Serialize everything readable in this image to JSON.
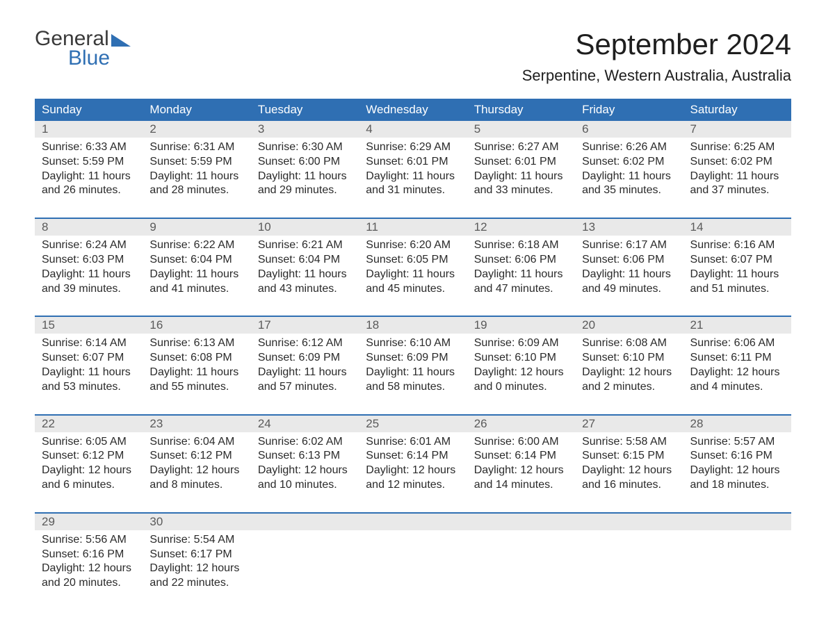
{
  "brand": {
    "line1": "General",
    "line2": "Blue"
  },
  "title": "September 2024",
  "location": "Serpentine, Western Australia, Australia",
  "colors": {
    "header_bg": "#2f6fb3",
    "header_fg": "#ffffff",
    "band_bg": "#e9e9e9",
    "text": "#2a2a2a",
    "page_bg": "#ffffff"
  },
  "fonts": {
    "title_size_pt": 32,
    "location_size_pt": 17,
    "dow_size_pt": 13,
    "body_size_pt": 12
  },
  "layout": {
    "columns": 7,
    "weeks": 5,
    "start_dow_index": 0
  },
  "dow": [
    "Sunday",
    "Monday",
    "Tuesday",
    "Wednesday",
    "Thursday",
    "Friday",
    "Saturday"
  ],
  "days": [
    {
      "n": 1,
      "sunrise": "Sunrise: 6:33 AM",
      "sunset": "Sunset: 5:59 PM",
      "daylight": "Daylight: 11 hours and 26 minutes."
    },
    {
      "n": 2,
      "sunrise": "Sunrise: 6:31 AM",
      "sunset": "Sunset: 5:59 PM",
      "daylight": "Daylight: 11 hours and 28 minutes."
    },
    {
      "n": 3,
      "sunrise": "Sunrise: 6:30 AM",
      "sunset": "Sunset: 6:00 PM",
      "daylight": "Daylight: 11 hours and 29 minutes."
    },
    {
      "n": 4,
      "sunrise": "Sunrise: 6:29 AM",
      "sunset": "Sunset: 6:01 PM",
      "daylight": "Daylight: 11 hours and 31 minutes."
    },
    {
      "n": 5,
      "sunrise": "Sunrise: 6:27 AM",
      "sunset": "Sunset: 6:01 PM",
      "daylight": "Daylight: 11 hours and 33 minutes."
    },
    {
      "n": 6,
      "sunrise": "Sunrise: 6:26 AM",
      "sunset": "Sunset: 6:02 PM",
      "daylight": "Daylight: 11 hours and 35 minutes."
    },
    {
      "n": 7,
      "sunrise": "Sunrise: 6:25 AM",
      "sunset": "Sunset: 6:02 PM",
      "daylight": "Daylight: 11 hours and 37 minutes."
    },
    {
      "n": 8,
      "sunrise": "Sunrise: 6:24 AM",
      "sunset": "Sunset: 6:03 PM",
      "daylight": "Daylight: 11 hours and 39 minutes."
    },
    {
      "n": 9,
      "sunrise": "Sunrise: 6:22 AM",
      "sunset": "Sunset: 6:04 PM",
      "daylight": "Daylight: 11 hours and 41 minutes."
    },
    {
      "n": 10,
      "sunrise": "Sunrise: 6:21 AM",
      "sunset": "Sunset: 6:04 PM",
      "daylight": "Daylight: 11 hours and 43 minutes."
    },
    {
      "n": 11,
      "sunrise": "Sunrise: 6:20 AM",
      "sunset": "Sunset: 6:05 PM",
      "daylight": "Daylight: 11 hours and 45 minutes."
    },
    {
      "n": 12,
      "sunrise": "Sunrise: 6:18 AM",
      "sunset": "Sunset: 6:06 PM",
      "daylight": "Daylight: 11 hours and 47 minutes."
    },
    {
      "n": 13,
      "sunrise": "Sunrise: 6:17 AM",
      "sunset": "Sunset: 6:06 PM",
      "daylight": "Daylight: 11 hours and 49 minutes."
    },
    {
      "n": 14,
      "sunrise": "Sunrise: 6:16 AM",
      "sunset": "Sunset: 6:07 PM",
      "daylight": "Daylight: 11 hours and 51 minutes."
    },
    {
      "n": 15,
      "sunrise": "Sunrise: 6:14 AM",
      "sunset": "Sunset: 6:07 PM",
      "daylight": "Daylight: 11 hours and 53 minutes."
    },
    {
      "n": 16,
      "sunrise": "Sunrise: 6:13 AM",
      "sunset": "Sunset: 6:08 PM",
      "daylight": "Daylight: 11 hours and 55 minutes."
    },
    {
      "n": 17,
      "sunrise": "Sunrise: 6:12 AM",
      "sunset": "Sunset: 6:09 PM",
      "daylight": "Daylight: 11 hours and 57 minutes."
    },
    {
      "n": 18,
      "sunrise": "Sunrise: 6:10 AM",
      "sunset": "Sunset: 6:09 PM",
      "daylight": "Daylight: 11 hours and 58 minutes."
    },
    {
      "n": 19,
      "sunrise": "Sunrise: 6:09 AM",
      "sunset": "Sunset: 6:10 PM",
      "daylight": "Daylight: 12 hours and 0 minutes."
    },
    {
      "n": 20,
      "sunrise": "Sunrise: 6:08 AM",
      "sunset": "Sunset: 6:10 PM",
      "daylight": "Daylight: 12 hours and 2 minutes."
    },
    {
      "n": 21,
      "sunrise": "Sunrise: 6:06 AM",
      "sunset": "Sunset: 6:11 PM",
      "daylight": "Daylight: 12 hours and 4 minutes."
    },
    {
      "n": 22,
      "sunrise": "Sunrise: 6:05 AM",
      "sunset": "Sunset: 6:12 PM",
      "daylight": "Daylight: 12 hours and 6 minutes."
    },
    {
      "n": 23,
      "sunrise": "Sunrise: 6:04 AM",
      "sunset": "Sunset: 6:12 PM",
      "daylight": "Daylight: 12 hours and 8 minutes."
    },
    {
      "n": 24,
      "sunrise": "Sunrise: 6:02 AM",
      "sunset": "Sunset: 6:13 PM",
      "daylight": "Daylight: 12 hours and 10 minutes."
    },
    {
      "n": 25,
      "sunrise": "Sunrise: 6:01 AM",
      "sunset": "Sunset: 6:14 PM",
      "daylight": "Daylight: 12 hours and 12 minutes."
    },
    {
      "n": 26,
      "sunrise": "Sunrise: 6:00 AM",
      "sunset": "Sunset: 6:14 PM",
      "daylight": "Daylight: 12 hours and 14 minutes."
    },
    {
      "n": 27,
      "sunrise": "Sunrise: 5:58 AM",
      "sunset": "Sunset: 6:15 PM",
      "daylight": "Daylight: 12 hours and 16 minutes."
    },
    {
      "n": 28,
      "sunrise": "Sunrise: 5:57 AM",
      "sunset": "Sunset: 6:16 PM",
      "daylight": "Daylight: 12 hours and 18 minutes."
    },
    {
      "n": 29,
      "sunrise": "Sunrise: 5:56 AM",
      "sunset": "Sunset: 6:16 PM",
      "daylight": "Daylight: 12 hours and 20 minutes."
    },
    {
      "n": 30,
      "sunrise": "Sunrise: 5:54 AM",
      "sunset": "Sunset: 6:17 PM",
      "daylight": "Daylight: 12 hours and 22 minutes."
    }
  ]
}
